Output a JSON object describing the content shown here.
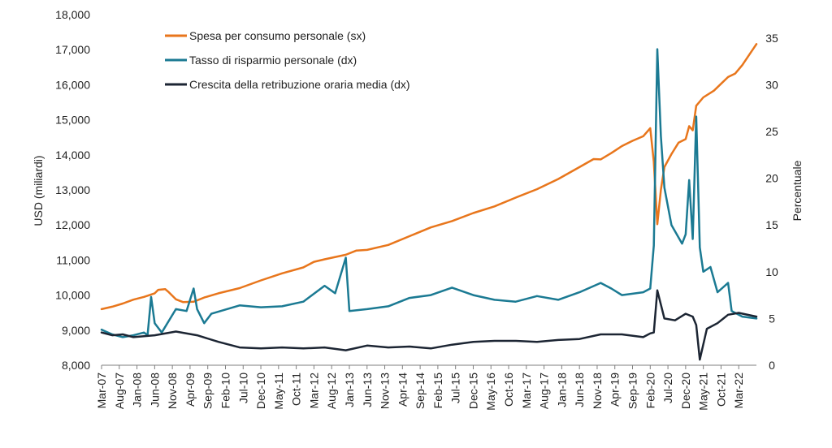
{
  "chart_data": {
    "type": "line",
    "title": "",
    "left_axis": {
      "label": "USD (miliardi)",
      "ylim": [
        8000,
        18000
      ],
      "ticks": [
        "8,000",
        "9,000",
        "10,000",
        "11,000",
        "12,000",
        "13,000",
        "14,000",
        "15,000",
        "16,000",
        "17,000",
        "18,000"
      ],
      "tick_values": [
        8000,
        9000,
        10000,
        11000,
        12000,
        13000,
        14000,
        15000,
        16000,
        17000,
        18000
      ]
    },
    "right_axis": {
      "label": "Percentuale",
      "ylim": [
        0,
        37.5
      ],
      "ticks": [
        "0",
        "5",
        "10",
        "15",
        "20",
        "25",
        "30",
        "35"
      ],
      "tick_values": [
        0,
        5,
        10,
        15,
        20,
        25,
        30,
        35
      ]
    },
    "x_axis": {
      "start": "2007-03",
      "end": "2022-08",
      "tick_labels": [
        "Mar-07",
        "Aug-07",
        "Jan-08",
        "Jun-08",
        "Nov-08",
        "Apr-09",
        "Sep-09",
        "Feb-10",
        "Jul-10",
        "Dec-10",
        "May-11",
        "Oct-11",
        "Mar-12",
        "Aug-12",
        "Jan-13",
        "Jun-13",
        "Nov-13",
        "Apr-14",
        "Sep-14",
        "Feb-15",
        "Jul-15",
        "Dec-15",
        "May-16",
        "Oct-16",
        "Mar-17",
        "Aug-17",
        "Jan-18",
        "Jun-18",
        "Nov-18",
        "Apr-19",
        "Sep-19",
        "Feb-20",
        "Jul-20",
        "Dec-20",
        "May-21",
        "Oct-21",
        "Mar-22"
      ]
    },
    "grid": false,
    "legend_position": "top-center",
    "series": [
      {
        "name": "Spesa per consumo personale (sx)",
        "axis": "left",
        "color": "#e8761c",
        "points": [
          [
            "2007-03",
            9600
          ],
          [
            "2007-06",
            9670
          ],
          [
            "2007-09",
            9760
          ],
          [
            "2007-12",
            9870
          ],
          [
            "2008-03",
            9950
          ],
          [
            "2008-06",
            10050
          ],
          [
            "2008-07",
            10150
          ],
          [
            "2008-09",
            10170
          ],
          [
            "2008-10",
            10080
          ],
          [
            "2008-12",
            9880
          ],
          [
            "2009-02",
            9800
          ],
          [
            "2009-05",
            9810
          ],
          [
            "2009-08",
            9930
          ],
          [
            "2009-12",
            10050
          ],
          [
            "2010-06",
            10200
          ],
          [
            "2010-12",
            10420
          ],
          [
            "2011-06",
            10620
          ],
          [
            "2011-12",
            10790
          ],
          [
            "2012-03",
            10950
          ],
          [
            "2012-06",
            11020
          ],
          [
            "2012-12",
            11150
          ],
          [
            "2013-03",
            11270
          ],
          [
            "2013-06",
            11290
          ],
          [
            "2013-12",
            11430
          ],
          [
            "2014-06",
            11680
          ],
          [
            "2014-12",
            11930
          ],
          [
            "2015-06",
            12110
          ],
          [
            "2015-12",
            12340
          ],
          [
            "2016-06",
            12530
          ],
          [
            "2016-12",
            12780
          ],
          [
            "2017-06",
            13020
          ],
          [
            "2017-12",
            13310
          ],
          [
            "2018-06",
            13650
          ],
          [
            "2018-10",
            13880
          ],
          [
            "2018-12",
            13870
          ],
          [
            "2019-03",
            14050
          ],
          [
            "2019-06",
            14250
          ],
          [
            "2019-09",
            14400
          ],
          [
            "2019-12",
            14530
          ],
          [
            "2020-02",
            14760
          ],
          [
            "2020-03",
            13800
          ],
          [
            "2020-04",
            12020
          ],
          [
            "2020-05",
            13000
          ],
          [
            "2020-06",
            13650
          ],
          [
            "2020-08",
            14020
          ],
          [
            "2020-10",
            14350
          ],
          [
            "2020-12",
            14450
          ],
          [
            "2021-01",
            14820
          ],
          [
            "2021-02",
            14700
          ],
          [
            "2021-03",
            15400
          ],
          [
            "2021-05",
            15640
          ],
          [
            "2021-08",
            15830
          ],
          [
            "2021-12",
            16220
          ],
          [
            "2022-02",
            16320
          ],
          [
            "2022-04",
            16560
          ],
          [
            "2022-08",
            17160
          ]
        ]
      },
      {
        "name": "Tasso di risparmio personale (dx)",
        "axis": "right",
        "color": "#1b7a93",
        "points": [
          [
            "2007-03",
            3.8
          ],
          [
            "2007-06",
            3.3
          ],
          [
            "2007-09",
            3.0
          ],
          [
            "2007-12",
            3.2
          ],
          [
            "2008-03",
            3.5
          ],
          [
            "2008-04",
            3.2
          ],
          [
            "2008-05",
            7.3
          ],
          [
            "2008-06",
            4.5
          ],
          [
            "2008-08",
            3.5
          ],
          [
            "2008-12",
            6.0
          ],
          [
            "2009-03",
            5.8
          ],
          [
            "2009-05",
            8.2
          ],
          [
            "2009-06",
            6.0
          ],
          [
            "2009-08",
            4.5
          ],
          [
            "2009-10",
            5.5
          ],
          [
            "2010-06",
            6.4
          ],
          [
            "2010-12",
            6.2
          ],
          [
            "2011-06",
            6.3
          ],
          [
            "2011-12",
            6.8
          ],
          [
            "2012-06",
            8.5
          ],
          [
            "2012-09",
            7.7
          ],
          [
            "2012-12",
            11.5
          ],
          [
            "2013-01",
            5.8
          ],
          [
            "2013-06",
            6.0
          ],
          [
            "2013-12",
            6.3
          ],
          [
            "2014-06",
            7.2
          ],
          [
            "2014-12",
            7.5
          ],
          [
            "2015-06",
            8.3
          ],
          [
            "2015-12",
            7.5
          ],
          [
            "2016-06",
            7.0
          ],
          [
            "2016-12",
            6.8
          ],
          [
            "2017-06",
            7.4
          ],
          [
            "2017-12",
            7.0
          ],
          [
            "2018-06",
            7.8
          ],
          [
            "2018-12",
            8.8
          ],
          [
            "2019-03",
            8.2
          ],
          [
            "2019-06",
            7.5
          ],
          [
            "2019-12",
            7.8
          ],
          [
            "2020-02",
            8.2
          ],
          [
            "2020-03",
            12.8
          ],
          [
            "2020-04",
            33.8
          ],
          [
            "2020-05",
            24.5
          ],
          [
            "2020-06",
            19.0
          ],
          [
            "2020-08",
            15.0
          ],
          [
            "2020-11",
            13.0
          ],
          [
            "2020-12",
            14.0
          ],
          [
            "2021-01",
            19.8
          ],
          [
            "2021-02",
            13.5
          ],
          [
            "2021-03",
            26.6
          ],
          [
            "2021-04",
            12.6
          ],
          [
            "2021-05",
            10.0
          ],
          [
            "2021-07",
            10.5
          ],
          [
            "2021-09",
            7.8
          ],
          [
            "2021-12",
            8.8
          ],
          [
            "2022-01",
            5.8
          ],
          [
            "2022-04",
            5.2
          ],
          [
            "2022-08",
            5.0
          ]
        ]
      },
      {
        "name": "Crescita della retribuzione oraria media (dx)",
        "axis": "right",
        "color": "#1c2533",
        "points": [
          [
            "2007-03",
            3.5
          ],
          [
            "2007-06",
            3.2
          ],
          [
            "2007-09",
            3.3
          ],
          [
            "2007-12",
            3.0
          ],
          [
            "2008-06",
            3.2
          ],
          [
            "2008-12",
            3.6
          ],
          [
            "2009-06",
            3.2
          ],
          [
            "2009-12",
            2.5
          ],
          [
            "2010-06",
            1.9
          ],
          [
            "2010-12",
            1.8
          ],
          [
            "2011-06",
            1.9
          ],
          [
            "2011-12",
            1.8
          ],
          [
            "2012-06",
            1.9
          ],
          [
            "2012-12",
            1.6
          ],
          [
            "2013-06",
            2.1
          ],
          [
            "2013-12",
            1.9
          ],
          [
            "2014-06",
            2.0
          ],
          [
            "2014-12",
            1.8
          ],
          [
            "2015-06",
            2.2
          ],
          [
            "2015-12",
            2.5
          ],
          [
            "2016-06",
            2.6
          ],
          [
            "2016-12",
            2.6
          ],
          [
            "2017-06",
            2.5
          ],
          [
            "2017-12",
            2.7
          ],
          [
            "2018-06",
            2.8
          ],
          [
            "2018-12",
            3.3
          ],
          [
            "2019-06",
            3.3
          ],
          [
            "2019-12",
            3.0
          ],
          [
            "2020-02",
            3.4
          ],
          [
            "2020-03",
            3.5
          ],
          [
            "2020-04",
            8.0
          ],
          [
            "2020-06",
            5.0
          ],
          [
            "2020-09",
            4.8
          ],
          [
            "2020-12",
            5.5
          ],
          [
            "2021-02",
            5.2
          ],
          [
            "2021-03",
            4.3
          ],
          [
            "2021-04",
            0.6
          ],
          [
            "2021-06",
            3.9
          ],
          [
            "2021-09",
            4.5
          ],
          [
            "2021-12",
            5.4
          ],
          [
            "2022-03",
            5.6
          ],
          [
            "2022-08",
            5.2
          ]
        ]
      }
    ]
  }
}
